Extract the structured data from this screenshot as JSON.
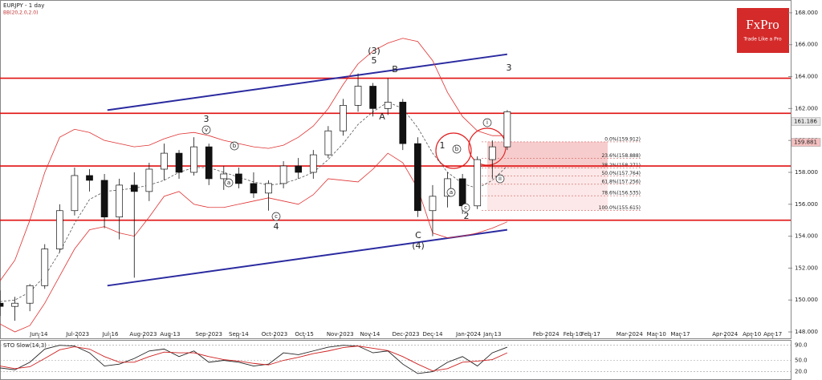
{
  "chart_data": [
    {
      "type": "candlestick",
      "title": "EURJPY - 1 day",
      "subtitle": "BB(20,2.0,2.0)",
      "logo": "FxPro",
      "logo_tagline": "Trade Like a Pro",
      "xlim": [
        0,
        265
      ],
      "ylim": [
        147.6,
        168.8
      ],
      "xticks": [
        {
          "value": 13,
          "label": "Jun-14"
        },
        {
          "value": 26,
          "label": "Jul-2023"
        },
        {
          "value": 37,
          "label": "Jul-16"
        },
        {
          "value": 48,
          "label": "Aug-2023"
        },
        {
          "value": 57,
          "label": "Aug-13"
        },
        {
          "value": 70,
          "label": "Sep-2023"
        },
        {
          "value": 80,
          "label": "Sep-14"
        },
        {
          "value": 92,
          "label": "Oct-2023"
        },
        {
          "value": 102,
          "label": "Oct-15"
        },
        {
          "value": 114,
          "label": "Nov-2023"
        },
        {
          "value": 124,
          "label": "Nov-14"
        },
        {
          "value": 136,
          "label": "Dec-2023"
        },
        {
          "value": 145,
          "label": "Dec-14"
        },
        {
          "value": 157,
          "label": "Jan-2024"
        },
        {
          "value": 165,
          "label": "Jan-13"
        },
        {
          "value": 183,
          "label": "Feb-2024"
        },
        {
          "value": 192,
          "label": "Feb-10"
        },
        {
          "value": 198,
          "label": "Feb-17"
        },
        {
          "value": 211,
          "label": "Mar-2024"
        },
        {
          "value": 220,
          "label": "Mar-10"
        },
        {
          "value": 228,
          "label": "Mar-17"
        },
        {
          "value": 243,
          "label": "Apr-2024"
        },
        {
          "value": 252,
          "label": "Apr-10"
        },
        {
          "value": 259,
          "label": "Apr-17"
        }
      ],
      "yticks": [
        {
          "value": 168,
          "label": "168.000"
        },
        {
          "value": 166,
          "label": "166.000"
        },
        {
          "value": 164,
          "label": "164.000"
        },
        {
          "value": 162,
          "label": "162.000"
        },
        {
          "value": 160,
          "label": "160.000"
        },
        {
          "value": 158,
          "label": "158.000"
        },
        {
          "value": 156,
          "label": "156.000"
        },
        {
          "value": 154,
          "label": "154.000"
        },
        {
          "value": 152,
          "label": "152.000"
        },
        {
          "value": 150,
          "label": "150.000"
        },
        {
          "value": 148,
          "label": "148.000"
        }
      ],
      "x": [
        0,
        5,
        10,
        15,
        20,
        25,
        30,
        35,
        40,
        45,
        50,
        55,
        60,
        65,
        70,
        75,
        80,
        85,
        90,
        95,
        100,
        105,
        110,
        115,
        120,
        125,
        130,
        135,
        140,
        145,
        150,
        155,
        160,
        165,
        170
      ],
      "open": [
        149.8,
        149.6,
        149.8,
        150.9,
        153.2,
        155.6,
        157.8,
        157.5,
        155.2,
        157.2,
        156.8,
        158.2,
        159.2,
        158.0,
        159.6,
        157.6,
        157.9,
        157.3,
        156.7,
        157.3,
        158.4,
        158.0,
        159.1,
        160.6,
        162.2,
        163.4,
        162.0,
        162.4,
        159.8,
        155.6,
        156.5,
        157.6,
        155.9,
        158.8,
        159.6
      ],
      "high": [
        150.6,
        150.2,
        151.0,
        153.5,
        156.0,
        158.3,
        158.2,
        157.9,
        157.6,
        158.0,
        158.6,
        159.8,
        159.4,
        160.2,
        159.8,
        158.4,
        158.3,
        158.0,
        157.5,
        158.7,
        158.9,
        159.4,
        160.9,
        162.6,
        164.2,
        163.6,
        163.9,
        162.6,
        160.2,
        157.2,
        158.0,
        157.9,
        159.0,
        160.0,
        161.9
      ],
      "low": [
        149.0,
        148.7,
        149.3,
        150.7,
        153.0,
        155.3,
        156.8,
        154.5,
        153.8,
        151.4,
        156.2,
        157.5,
        157.6,
        157.8,
        157.2,
        156.9,
        157.0,
        156.4,
        155.6,
        157.0,
        157.6,
        157.6,
        158.9,
        160.3,
        161.8,
        161.5,
        161.6,
        159.4,
        155.2,
        154.0,
        155.8,
        155.4,
        155.7,
        157.6,
        159.4
      ],
      "close": [
        149.6,
        149.8,
        150.9,
        153.2,
        155.6,
        157.8,
        157.5,
        155.2,
        157.2,
        156.8,
        158.2,
        159.2,
        158.0,
        159.6,
        157.6,
        157.9,
        157.3,
        156.7,
        157.3,
        158.4,
        158.0,
        159.1,
        160.6,
        162.2,
        163.4,
        162.0,
        162.4,
        159.8,
        155.6,
        156.5,
        157.6,
        155.9,
        158.8,
        159.6,
        161.8
      ],
      "bands": [
        {
          "name": "upper",
          "color": "#e03030",
          "values": [
            151.2,
            152.5,
            155.0,
            158.0,
            160.2,
            160.7,
            160.5,
            160.0,
            159.8,
            159.6,
            159.7,
            160.1,
            160.4,
            160.5,
            160.3,
            160.0,
            159.8,
            159.6,
            159.5,
            159.7,
            160.2,
            160.9,
            162.0,
            163.5,
            164.8,
            165.6,
            166.1,
            166.4,
            166.2,
            165.0,
            163.0,
            161.5,
            160.6,
            160.3,
            160.3
          ]
        },
        {
          "name": "middle",
          "color": "#555555",
          "values": [
            149.9,
            150.0,
            150.5,
            151.5,
            153.0,
            154.8,
            156.3,
            156.8,
            156.9,
            157.0,
            157.2,
            157.5,
            158.0,
            158.3,
            158.3,
            158.0,
            157.7,
            157.4,
            157.2,
            157.3,
            157.6,
            158.0,
            158.8,
            159.8,
            161.0,
            161.8,
            162.4,
            162.0,
            160.8,
            159.2,
            158.0,
            157.3,
            157.0,
            157.5,
            158.4
          ]
        },
        {
          "name": "lower",
          "color": "#e03030",
          "values": [
            148.5,
            148.0,
            148.4,
            149.8,
            151.5,
            153.2,
            154.4,
            154.6,
            154.2,
            154.0,
            155.2,
            156.5,
            156.8,
            156.0,
            155.8,
            155.8,
            156.0,
            156.2,
            156.4,
            156.2,
            156.0,
            156.6,
            157.6,
            157.5,
            157.4,
            158.2,
            159.2,
            158.6,
            157.0,
            154.2,
            153.9,
            154.0,
            154.2,
            154.5,
            154.9
          ]
        }
      ],
      "levels": [
        163.9,
        161.7,
        158.4,
        155.0
      ],
      "level_color": "#e01010",
      "channel": [
        {
          "x": [
            36,
            170
          ],
          "values": [
            161.9,
            165.4
          ]
        },
        {
          "x": [
            36,
            170
          ],
          "values": [
            150.9,
            154.4
          ]
        }
      ],
      "channel_color": "#2a2aa0",
      "fib": [
        {
          "value": 159.912,
          "label": "0.0%(159.912)"
        },
        {
          "value": 158.888,
          "label": "23.6%(158.888)"
        },
        {
          "value": 158.271,
          "label": "38.2%(158.271)"
        },
        {
          "value": 157.764,
          "label": "50.0%(157.764)"
        },
        {
          "value": 157.256,
          "label": "61.8%(157.256)"
        },
        {
          "value": 156.535,
          "label": "78.6%(156.535)"
        },
        {
          "value": 155.615,
          "label": "100.0%(155.615)"
        }
      ],
      "price_labels": [
        {
          "value": 161.186,
          "label": "161.186"
        },
        {
          "value": 159.881,
          "label": "159.881"
        }
      ],
      "annotations": [
        {
          "text": "(3)"
        },
        {
          "text": "5"
        },
        {
          "text": "B"
        },
        {
          "text": "A"
        },
        {
          "text": "3"
        },
        {
          "text": "v",
          "circled": true
        },
        {
          "text": "b",
          "circled": true
        },
        {
          "text": "a",
          "circled": true
        },
        {
          "text": "c",
          "circled": true
        },
        {
          "text": "4"
        },
        {
          "text": "C"
        },
        {
          "text": "(4)"
        },
        {
          "text": "1"
        },
        {
          "text": "b",
          "circled": true
        },
        {
          "text": "a",
          "circled": true
        },
        {
          "text": "c",
          "circled": true
        },
        {
          "text": "2"
        },
        {
          "text": "i",
          "circled": true
        },
        {
          "text": "ii",
          "circled": true
        },
        {
          "text": "3"
        }
      ]
    },
    {
      "type": "line",
      "title": "STO Slow(14,3)",
      "ylim": [
        0,
        100
      ],
      "yticks": [
        {
          "value": 90,
          "label": "90.0"
        },
        {
          "value": 50,
          "label": "50.0"
        },
        {
          "value": 20,
          "label": "20.0"
        }
      ],
      "x": [
        0,
        5,
        10,
        15,
        20,
        25,
        30,
        35,
        40,
        45,
        50,
        55,
        60,
        65,
        70,
        75,
        80,
        85,
        90,
        95,
        100,
        105,
        110,
        115,
        120,
        125,
        130,
        135,
        140,
        145,
        150,
        155,
        160,
        165,
        170
      ],
      "series": [
        {
          "name": "%K",
          "color": "#222222",
          "values": [
            30,
            25,
            45,
            80,
            90,
            88,
            70,
            35,
            40,
            55,
            75,
            80,
            60,
            75,
            45,
            50,
            45,
            35,
            40,
            70,
            65,
            75,
            85,
            90,
            88,
            70,
            75,
            40,
            15,
            20,
            45,
            60,
            35,
            70,
            85
          ]
        },
        {
          "name": "%D",
          "color": "#d02020",
          "values": [
            35,
            28,
            33,
            55,
            78,
            86,
            80,
            60,
            45,
            45,
            60,
            72,
            70,
            70,
            60,
            52,
            48,
            42,
            38,
            50,
            58,
            68,
            75,
            84,
            88,
            82,
            76,
            60,
            40,
            22,
            28,
            45,
            48,
            52,
            70
          ]
        }
      ]
    }
  ]
}
